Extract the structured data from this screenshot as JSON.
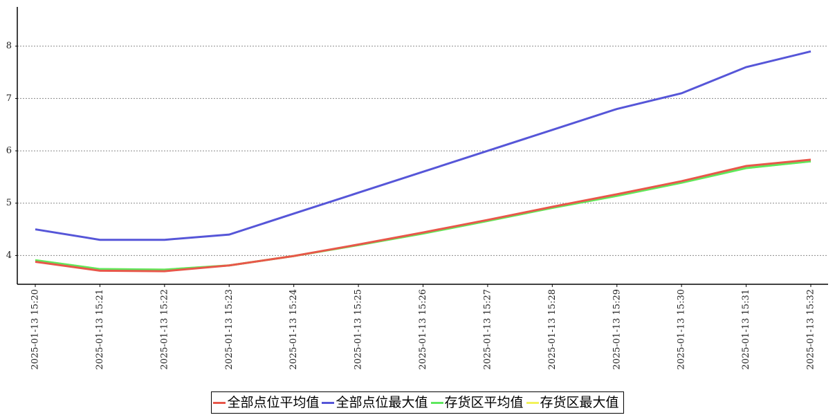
{
  "chart_data": {
    "type": "line",
    "categories": [
      "2025-01-13 15:20",
      "2025-01-13 15:21",
      "2025-01-13 15:22",
      "2025-01-13 15:23",
      "2025-01-13 15:24",
      "2025-01-13 15:25",
      "2025-01-13 15:26",
      "2025-01-13 15:27",
      "2025-01-13 15:28",
      "2025-01-13 15:29",
      "2025-01-13 15:30",
      "2025-01-13 15:31",
      "2025-01-13 15:32"
    ],
    "series": [
      {
        "name": "全部点位平均值",
        "color": "#e8574a",
        "values": [
          3.88,
          3.71,
          3.7,
          3.81,
          3.99,
          4.21,
          4.44,
          4.68,
          4.93,
          5.17,
          5.42,
          5.71,
          5.83
        ]
      },
      {
        "name": "全部点位最大值",
        "color": "#5656d8",
        "values": [
          4.5,
          4.3,
          4.3,
          4.4,
          4.8,
          5.2,
          5.6,
          6.0,
          6.4,
          6.8,
          7.1,
          7.6,
          7.9
        ]
      },
      {
        "name": "存货区平均值",
        "color": "#5ee85e",
        "values": [
          3.91,
          3.74,
          3.73,
          3.81,
          3.99,
          4.2,
          4.42,
          4.66,
          4.91,
          5.14,
          5.39,
          5.67,
          5.8
        ]
      },
      {
        "name": "存货区最大值",
        "color": "#f2f25a",
        "values": [
          3.91,
          3.74,
          3.73,
          3.81,
          3.99,
          4.2,
          4.42,
          4.66,
          4.91,
          5.14,
          5.39,
          5.67,
          5.8
        ]
      }
    ],
    "ylim": [
      3.45,
      8.75
    ],
    "yticks": [
      4,
      5,
      6,
      7,
      8
    ],
    "grid": true,
    "legend_position": "bottom"
  }
}
